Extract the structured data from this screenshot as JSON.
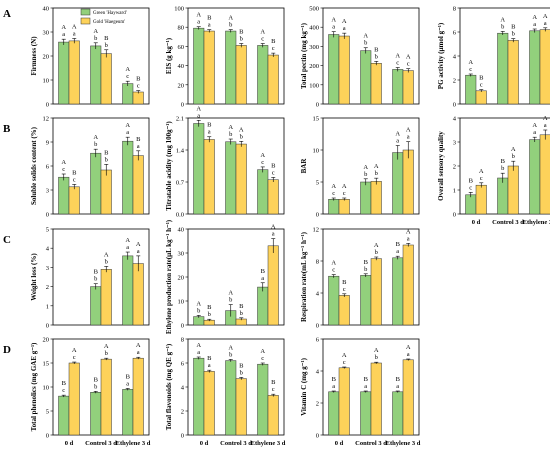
{
  "row_labels": [
    "A",
    "B",
    "C",
    "D"
  ],
  "legend": [
    "Green 'Hayward'",
    "Gold 'Haegeum'"
  ],
  "colors": {
    "green": "#92d07c",
    "gold": "#fdd25a",
    "stroke": "#333333"
  },
  "chart_data": [
    {
      "type": "bar",
      "ylabel": "Firmness (N)",
      "ylim": [
        0,
        40
      ],
      "yticks": [
        0,
        10,
        20,
        30,
        40
      ],
      "tick_decimals": 0,
      "categories": [
        "0 d",
        "Control 3 d",
        "Ethylene 3 d"
      ],
      "show_xticklabels": false,
      "series": [
        {
          "name": "Green 'Hayward'",
          "values": [
            25.8,
            24.2,
            8.5
          ],
          "errors": [
            1.2,
            1.3,
            1.0
          ],
          "labels": [
            [
              "A",
              "a"
            ],
            [
              "A",
              "b"
            ],
            [
              "A",
              "c"
            ]
          ]
        },
        {
          "name": "Gold 'Haegeum'",
          "values": [
            26.3,
            21.0,
            5.0
          ],
          "errors": [
            1.0,
            1.6,
            0.6
          ],
          "labels": [
            [
              "A",
              "a"
            ],
            [
              "B",
              "b"
            ],
            [
              "B",
              "c"
            ]
          ]
        }
      ]
    },
    {
      "type": "bar",
      "ylabel": "EIS (g kg⁻¹)",
      "ylim": [
        0,
        100
      ],
      "yticks": [
        0,
        20,
        40,
        60,
        80,
        100
      ],
      "tick_decimals": 0,
      "categories": [
        "0 d",
        "Control 3 d",
        "Ethylene 3 d"
      ],
      "show_xticklabels": false,
      "series": [
        {
          "name": "Green 'Hayward'",
          "values": [
            79,
            76,
            61
          ],
          "errors": [
            1.5,
            1.5,
            2.0
          ],
          "labels": [
            [
              "A",
              "a"
            ],
            [
              "A",
              "b"
            ],
            [
              "A",
              "c"
            ]
          ]
        },
        {
          "name": "Gold 'Haegeum'",
          "values": [
            76,
            61,
            51
          ],
          "errors": [
            1.5,
            2.0,
            2.0
          ],
          "labels": [
            [
              "B",
              "a"
            ],
            [
              "B",
              "b"
            ],
            [
              "B",
              "c"
            ]
          ]
        }
      ]
    },
    {
      "type": "bar",
      "ylabel": "Total pectin (mg kg⁻¹)",
      "ylim": [
        0,
        500
      ],
      "yticks": [
        0,
        100,
        200,
        300,
        400,
        500
      ],
      "tick_decimals": 0,
      "categories": [
        "0 d",
        "Control 3 d",
        "Ethylene 3 d"
      ],
      "show_xticklabels": false,
      "series": [
        {
          "name": "Green 'Hayward'",
          "values": [
            362,
            278,
            180
          ],
          "errors": [
            15,
            15,
            10
          ],
          "labels": [
            [
              "A",
              "a"
            ],
            [
              "A",
              "b"
            ],
            [
              "A",
              "c"
            ]
          ]
        },
        {
          "name": "Gold 'Haegeum'",
          "values": [
            354,
            212,
            174
          ],
          "errors": [
            15,
            10,
            10
          ],
          "labels": [
            [
              "A",
              "a"
            ],
            [
              "B",
              "b"
            ],
            [
              "A",
              "c"
            ]
          ]
        }
      ]
    },
    {
      "type": "bar",
      "ylabel": "PG activity (µmol g⁻¹)",
      "ylim": [
        0,
        8
      ],
      "yticks": [
        0,
        2,
        4,
        6,
        8
      ],
      "tick_decimals": 0,
      "categories": [
        "0 d",
        "Control 3 d",
        "Ethylene 3 d"
      ],
      "show_xticklabels": false,
      "series": [
        {
          "name": "Green 'Hayward'",
          "values": [
            2.4,
            5.9,
            6.1
          ],
          "errors": [
            0.1,
            0.15,
            0.15
          ],
          "labels": [
            [
              "A",
              "c"
            ],
            [
              "A",
              "b"
            ],
            [
              "A",
              "a"
            ]
          ]
        },
        {
          "name": "Gold 'Haegeum'",
          "values": [
            1.1,
            5.3,
            6.2
          ],
          "errors": [
            0.1,
            0.15,
            0.15
          ],
          "labels": [
            [
              "B",
              "c"
            ],
            [
              "B",
              "b"
            ],
            [
              "A",
              "a"
            ]
          ]
        }
      ]
    },
    {
      "type": "bar",
      "ylabel": "Soluble solids content (%)",
      "ylim": [
        0,
        12
      ],
      "yticks": [
        0,
        3,
        6,
        9,
        12
      ],
      "tick_decimals": 0,
      "categories": [
        "0 d",
        "Control 3 d",
        "Ethylene 3 d"
      ],
      "show_xticklabels": false,
      "series": [
        {
          "name": "Green 'Hayward'",
          "values": [
            4.6,
            7.6,
            9.1
          ],
          "errors": [
            0.4,
            0.5,
            0.5
          ],
          "labels": [
            [
              "A",
              "c"
            ],
            [
              "A",
              "b"
            ],
            [
              "A",
              "a"
            ]
          ]
        },
        {
          "name": "Gold 'Haegeum'",
          "values": [
            3.4,
            5.5,
            7.3
          ],
          "errors": [
            0.3,
            0.7,
            0.6
          ],
          "labels": [
            [
              "B",
              "c"
            ],
            [
              "B",
              "b"
            ],
            [
              "B",
              "a"
            ]
          ]
        }
      ]
    },
    {
      "type": "bar",
      "ylabel": "Titratable acidity (mg 100g⁻¹)",
      "ylim": [
        0,
        2.1
      ],
      "yticks": [
        0,
        0.7,
        1.4,
        2.1
      ],
      "tick_decimals": 1,
      "categories": [
        "0 d",
        "Control 3 d",
        "Ethylene 3 d"
      ],
      "show_xticklabels": false,
      "series": [
        {
          "name": "Green 'Hayward'",
          "values": [
            1.98,
            1.58,
            0.97
          ],
          "errors": [
            0.07,
            0.06,
            0.06
          ],
          "labels": [
            [
              "A",
              "a"
            ],
            [
              "A",
              "b"
            ],
            [
              "A",
              "c"
            ]
          ]
        },
        {
          "name": "Gold 'Haegeum'",
          "values": [
            1.63,
            1.53,
            0.75
          ],
          "errors": [
            0.06,
            0.06,
            0.05
          ],
          "labels": [
            [
              "B",
              "a"
            ],
            [
              "A",
              "b"
            ],
            [
              "B",
              "c"
            ]
          ]
        }
      ]
    },
    {
      "type": "bar",
      "ylabel": "BAR",
      "ylim": [
        0,
        15
      ],
      "yticks": [
        0,
        5,
        10,
        15
      ],
      "tick_decimals": 0,
      "categories": [
        "0 d",
        "Control 3 d",
        "Ethylene 3 d"
      ],
      "show_xticklabels": false,
      "series": [
        {
          "name": "Green 'Hayward'",
          "values": [
            2.3,
            5.0,
            9.6
          ],
          "errors": [
            0.2,
            0.5,
            1.1
          ],
          "labels": [
            [
              "A",
              "c"
            ],
            [
              "A",
              "b"
            ],
            [
              "A",
              "a"
            ]
          ]
        },
        {
          "name": "Gold 'Haegeum'",
          "values": [
            2.3,
            5.1,
            10.0
          ],
          "errors": [
            0.2,
            0.5,
            1.3
          ],
          "labels": [
            [
              "A",
              "c"
            ],
            [
              "A",
              "b"
            ],
            [
              "A",
              "a"
            ]
          ]
        }
      ]
    },
    {
      "type": "bar",
      "ylabel": "Overall sensory quality",
      "ylim": [
        0,
        4
      ],
      "yticks": [
        0,
        1,
        2,
        3,
        4
      ],
      "tick_decimals": 0,
      "categories": [
        "0 d",
        "Control 3 d",
        "Ethylene 3 d"
      ],
      "show_xticklabels": true,
      "series": [
        {
          "name": "Green 'Hayward'",
          "values": [
            0.8,
            1.5,
            3.1
          ],
          "errors": [
            0.1,
            0.2,
            0.1
          ],
          "labels": [
            [
              "B",
              "c"
            ],
            [
              "B",
              "b"
            ],
            [
              "A",
              "a"
            ]
          ]
        },
        {
          "name": "Gold 'Haegeum'",
          "values": [
            1.2,
            2.0,
            3.3
          ],
          "errors": [
            0.1,
            0.2,
            0.2
          ],
          "labels": [
            [
              "A",
              "c"
            ],
            [
              "A",
              "b"
            ],
            [
              "A",
              "a"
            ]
          ]
        }
      ]
    },
    {
      "type": "bar",
      "ylabel": "Weight loss (%)",
      "ylim": [
        0,
        5
      ],
      "yticks": [
        0,
        1,
        2,
        3,
        4,
        5
      ],
      "tick_decimals": 0,
      "categories": [
        "0 d",
        "Control 3 d",
        "Ethylene 3 d"
      ],
      "show_xticklabels": false,
      "series": [
        {
          "name": "Green 'Hayward'",
          "values": [
            null,
            2.0,
            3.6
          ],
          "errors": [
            null,
            0.15,
            0.2
          ],
          "labels": [
            null,
            [
              "B",
              "b"
            ],
            [
              "A",
              "a"
            ]
          ]
        },
        {
          "name": "Gold 'Haegeum'",
          "values": [
            null,
            2.9,
            3.2
          ],
          "errors": [
            null,
            0.15,
            0.4
          ],
          "labels": [
            null,
            [
              "A",
              "b"
            ],
            [
              "A",
              "a"
            ]
          ]
        }
      ]
    },
    {
      "type": "bar",
      "ylabel": "Ethylene production rate(µL kg⁻¹ h⁻¹)",
      "ylim": [
        0,
        40
      ],
      "yticks": [
        0,
        10,
        20,
        30,
        40
      ],
      "tick_decimals": 0,
      "categories": [
        "0 d",
        "Control 3 d",
        "Ethylene 3 d"
      ],
      "show_xticklabels": false,
      "series": [
        {
          "name": "Green 'Hayward'",
          "values": [
            3.5,
            6.0,
            15.8
          ],
          "errors": [
            0.5,
            2.5,
            1.8
          ],
          "labels": [
            [
              "A",
              "b"
            ],
            [
              "A",
              "b"
            ],
            [
              "B",
              "a"
            ]
          ]
        },
        {
          "name": "Gold 'Haegeum'",
          "values": [
            2.0,
            2.5,
            33.0
          ],
          "errors": [
            0.4,
            0.5,
            3.0
          ],
          "labels": [
            [
              "B",
              "b"
            ],
            [
              "B",
              "b"
            ],
            [
              "A",
              "a"
            ]
          ]
        }
      ]
    },
    {
      "type": "bar",
      "ylabel": "Respiration rate(mL kg⁻¹ h⁻¹)",
      "ylim": [
        0,
        12
      ],
      "yticks": [
        0,
        4,
        8,
        12
      ],
      "tick_decimals": 0,
      "categories": [
        "0 d",
        "Control 3 d",
        "Ethylene 3 d"
      ],
      "show_xticklabels": false,
      "series": [
        {
          "name": "Green 'Hayward'",
          "values": [
            6.1,
            6.2,
            8.4
          ],
          "errors": [
            0.2,
            0.2,
            0.2
          ],
          "labels": [
            [
              "A",
              "c"
            ],
            [
              "B",
              "b"
            ],
            [
              "B",
              "a"
            ]
          ]
        },
        {
          "name": "Gold 'Haegeum'",
          "values": [
            3.7,
            8.3,
            10.0
          ],
          "errors": [
            0.2,
            0.2,
            0.2
          ],
          "labels": [
            [
              "B",
              "c"
            ],
            [
              "A",
              "b"
            ],
            [
              "A",
              "a"
            ]
          ]
        }
      ]
    },
    {
      "type": "bar",
      "ylabel": "Total phenolics (mg GAE g⁻¹)",
      "ylim": [
        0,
        20
      ],
      "yticks": [
        0,
        5,
        10,
        15,
        20
      ],
      "tick_decimals": 0,
      "categories": [
        "0 d",
        "Control 3 d",
        "Ethylene 3 d"
      ],
      "show_xticklabels": true,
      "series": [
        {
          "name": "Green 'Hayward'",
          "values": [
            8.1,
            8.9,
            9.5
          ],
          "errors": [
            0.2,
            0.2,
            0.2
          ],
          "labels": [
            [
              "B",
              "c"
            ],
            [
              "B",
              "b"
            ],
            [
              "B",
              "a"
            ]
          ]
        },
        {
          "name": "Gold 'Haegeum'",
          "values": [
            15.0,
            15.8,
            16.0
          ],
          "errors": [
            0.2,
            0.2,
            0.2
          ],
          "labels": [
            [
              "A",
              "c"
            ],
            [
              "A",
              "b"
            ],
            [
              "A",
              "a"
            ]
          ]
        }
      ]
    },
    {
      "type": "bar",
      "ylabel": "Total flavonoids (mg QE g⁻¹)",
      "ylim": [
        0,
        8
      ],
      "yticks": [
        0,
        2,
        4,
        6,
        8
      ],
      "tick_decimals": 0,
      "categories": [
        "0 d",
        "Control 3 d",
        "Ethylene 3 d"
      ],
      "show_xticklabels": true,
      "series": [
        {
          "name": "Green 'Hayward'",
          "values": [
            6.4,
            6.2,
            5.9
          ],
          "errors": [
            0.1,
            0.1,
            0.1
          ],
          "labels": [
            [
              "A",
              "a"
            ],
            [
              "A",
              "b"
            ],
            [
              "A",
              "c"
            ]
          ]
        },
        {
          "name": "Gold 'Haegeum'",
          "values": [
            5.3,
            4.7,
            3.3
          ],
          "errors": [
            0.1,
            0.1,
            0.1
          ],
          "labels": [
            [
              "B",
              "a"
            ],
            [
              "B",
              "b"
            ],
            [
              "B",
              "c"
            ]
          ]
        }
      ]
    },
    {
      "type": "bar",
      "ylabel": "Vitamin C (mg g⁻¹)",
      "ylim": [
        0,
        6
      ],
      "yticks": [
        0,
        2,
        4,
        6
      ],
      "tick_decimals": 0,
      "categories": [
        "0 d",
        "Control 3 d",
        "Ethylene 3 d"
      ],
      "show_xticklabels": true,
      "series": [
        {
          "name": "Green 'Hayward'",
          "values": [
            2.7,
            2.7,
            2.7
          ],
          "errors": [
            0.05,
            0.05,
            0.05
          ],
          "labels": [
            [
              "B",
              "a"
            ],
            [
              "B",
              "a"
            ],
            [
              "B",
              "a"
            ]
          ]
        },
        {
          "name": "Gold 'Haegeum'",
          "values": [
            4.2,
            4.5,
            4.7
          ],
          "errors": [
            0.05,
            0.05,
            0.05
          ],
          "labels": [
            [
              "A",
              "c"
            ],
            [
              "A",
              "b"
            ],
            [
              "A",
              "a"
            ]
          ]
        }
      ]
    }
  ]
}
